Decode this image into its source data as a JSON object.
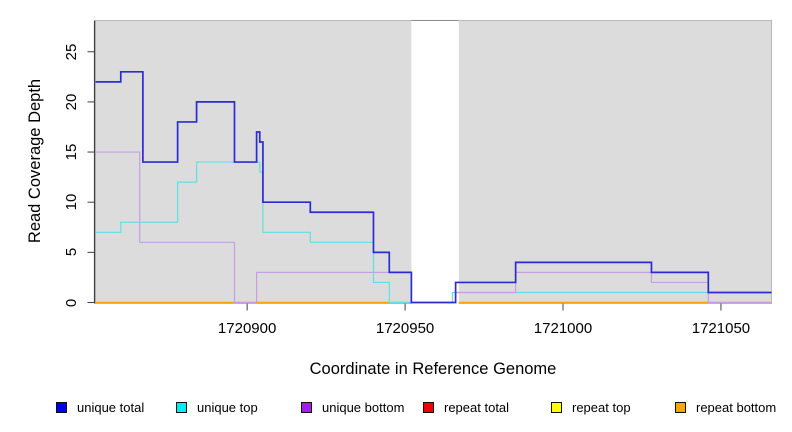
{
  "chart_data": {
    "type": "line",
    "subtype": "step-after-coverage-plot",
    "title": "",
    "xlabel": "Coordinate in Reference Genome",
    "ylabel": "Read Coverage Depth",
    "xlim": [
      1720852,
      1721066
    ],
    "ylim": [
      0,
      28
    ],
    "x_ticks": [
      1720900,
      1720950,
      1721000,
      1721050
    ],
    "y_ticks": [
      0,
      5,
      10,
      15,
      20,
      25
    ],
    "grid": "off",
    "panel_background": "#dcdcdc",
    "legend_position": "bottom",
    "masked_region": {
      "start": 1720952,
      "end": 1720967,
      "fill": "#ffffff"
    },
    "series": [
      {
        "name": "unique total",
        "legend_color": "#0000ee",
        "line_color": "#2b2bd5",
        "line_width": 1.7,
        "points": [
          [
            1720852,
            22
          ],
          [
            1720860,
            23
          ],
          [
            1720867,
            14
          ],
          [
            1720878,
            18
          ],
          [
            1720884,
            20
          ],
          [
            1720896,
            14
          ],
          [
            1720903,
            17
          ],
          [
            1720904,
            16
          ],
          [
            1720905,
            10
          ],
          [
            1720920,
            9
          ],
          [
            1720940,
            5
          ],
          [
            1720945,
            3
          ],
          [
            1720952,
            0
          ],
          [
            1720966,
            2
          ],
          [
            1720985,
            4
          ],
          [
            1721028,
            3
          ],
          [
            1721046,
            1
          ],
          [
            1721066,
            1
          ]
        ]
      },
      {
        "name": "unique top",
        "legend_color": "#00eeee",
        "line_color": "#5fe0e6",
        "line_width": 1.2,
        "points": [
          [
            1720852,
            7
          ],
          [
            1720860,
            8
          ],
          [
            1720878,
            12
          ],
          [
            1720884,
            14
          ],
          [
            1720904,
            13
          ],
          [
            1720905,
            7
          ],
          [
            1720920,
            6
          ],
          [
            1720940,
            2
          ],
          [
            1720945,
            0
          ],
          [
            1720965,
            1
          ],
          [
            1721066,
            1
          ]
        ]
      },
      {
        "name": "unique bottom",
        "legend_color": "#a020f0",
        "line_color": "#c5a0e0",
        "line_width": 1.2,
        "points": [
          [
            1720852,
            15
          ],
          [
            1720866,
            6
          ],
          [
            1720896,
            0
          ],
          [
            1720903,
            3
          ],
          [
            1720952,
            0
          ],
          [
            1720966,
            1
          ],
          [
            1720985,
            3
          ],
          [
            1721028,
            2
          ],
          [
            1721046,
            0
          ],
          [
            1721066,
            0
          ]
        ]
      },
      {
        "name": "repeat total",
        "legend_color": "#ee0000",
        "line_color": "#dd0000",
        "line_width": 1.0,
        "points": [
          [
            1720852,
            0
          ],
          [
            1721066,
            0
          ]
        ]
      },
      {
        "name": "repeat top",
        "legend_color": "#ffff00",
        "line_color": "#ffff00",
        "line_width": 1.0,
        "points": [
          [
            1720852,
            0
          ],
          [
            1721066,
            0
          ]
        ]
      },
      {
        "name": "repeat bottom",
        "legend_color": "#ffa500",
        "line_color": "#ffa500",
        "line_width": 1.4,
        "points": [
          [
            1720852,
            0
          ],
          [
            1721066,
            0
          ]
        ]
      }
    ],
    "axis_color": "#404040",
    "panel_border_color": "#b9b9b9"
  }
}
